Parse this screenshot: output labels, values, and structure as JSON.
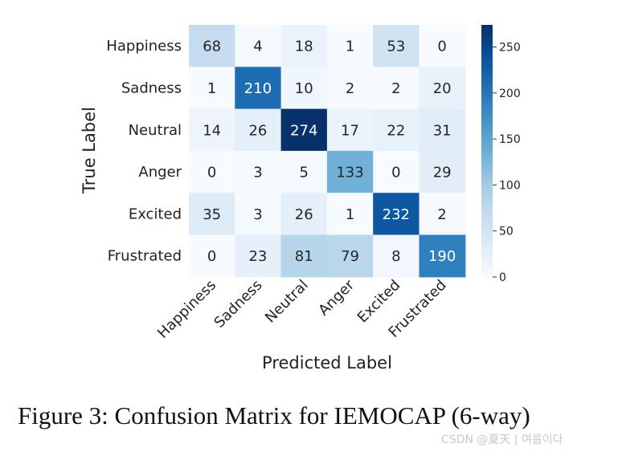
{
  "chart_data": {
    "type": "heatmap",
    "title": "",
    "xlabel": "Predicted Label",
    "ylabel": "True Label",
    "x_categories": [
      "Happiness",
      "Sadness",
      "Neutral",
      "Anger",
      "Excited",
      "Frustrated"
    ],
    "y_categories": [
      "Happiness",
      "Sadness",
      "Neutral",
      "Anger",
      "Excited",
      "Frustrated"
    ],
    "values": [
      [
        68,
        4,
        18,
        1,
        53,
        0
      ],
      [
        1,
        210,
        10,
        2,
        2,
        20
      ],
      [
        14,
        26,
        274,
        17,
        22,
        31
      ],
      [
        0,
        3,
        5,
        133,
        0,
        29
      ],
      [
        35,
        3,
        26,
        1,
        232,
        2
      ],
      [
        0,
        23,
        81,
        79,
        8,
        190
      ]
    ],
    "colorbar": {
      "range": [
        0,
        274
      ],
      "ticks": [
        0,
        50,
        100,
        150,
        200,
        250
      ],
      "colormap": "Blues"
    }
  },
  "caption": "Figure 3: Confusion Matrix for IEMOCAP (6-way)",
  "watermark": "CSDN @夏天 | 여름이다"
}
